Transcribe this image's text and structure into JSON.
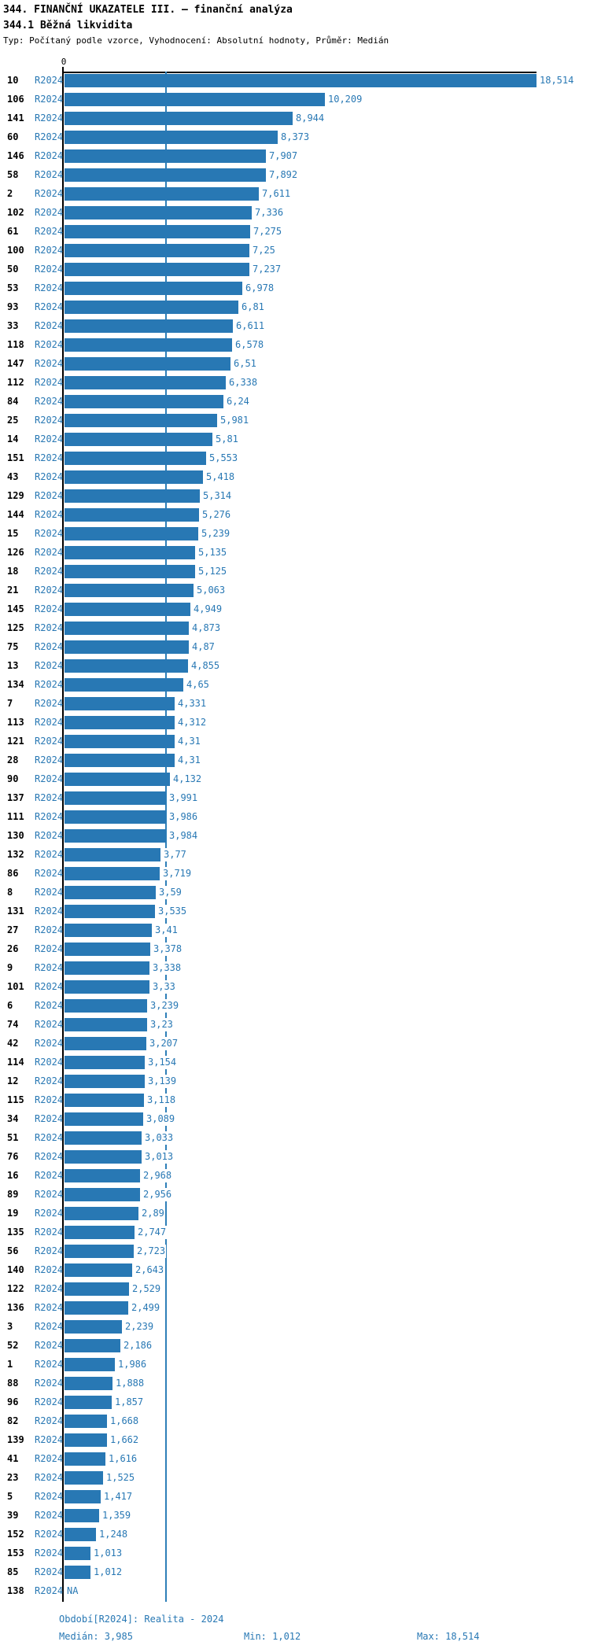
{
  "header": {
    "title": "344. FINANČNÍ UKAZATELE III. – finanční analýza",
    "subtitle": "344.1 Běžná likvidita",
    "meta": "Typ: Počítaný podle vzorce, Vyhodnocení: Absolutní hodnoty, Průměr: Medián"
  },
  "chart_data": {
    "type": "bar",
    "orientation": "horizontal",
    "title": "344.1 Běžná likvidita",
    "value_axis": {
      "origin_label": "0",
      "min": 0,
      "max": 18.514
    },
    "median_value": 3.985,
    "legend": "none",
    "colors": {
      "accent_blue": "#2878b4",
      "median_line": "#2e7fb8",
      "id_text": "#000000"
    },
    "rows": [
      {
        "id": "10",
        "period": "R2024",
        "label": "18,514",
        "value": 18.514
      },
      {
        "id": "106",
        "period": "R2024",
        "label": "10,209",
        "value": 10.209
      },
      {
        "id": "141",
        "period": "R2024",
        "label": "8,944",
        "value": 8.944
      },
      {
        "id": "60",
        "period": "R2024",
        "label": "8,373",
        "value": 8.373
      },
      {
        "id": "146",
        "period": "R2024",
        "label": "7,907",
        "value": 7.907
      },
      {
        "id": "58",
        "period": "R2024",
        "label": "7,892",
        "value": 7.892
      },
      {
        "id": "2",
        "period": "R2024",
        "label": "7,611",
        "value": 7.611
      },
      {
        "id": "102",
        "period": "R2024",
        "label": "7,336",
        "value": 7.336
      },
      {
        "id": "61",
        "period": "R2024",
        "label": "7,275",
        "value": 7.275
      },
      {
        "id": "100",
        "period": "R2024",
        "label": "7,25",
        "value": 7.25
      },
      {
        "id": "50",
        "period": "R2024",
        "label": "7,237",
        "value": 7.237
      },
      {
        "id": "53",
        "period": "R2024",
        "label": "6,978",
        "value": 6.978
      },
      {
        "id": "93",
        "period": "R2024",
        "label": "6,81",
        "value": 6.81
      },
      {
        "id": "33",
        "period": "R2024",
        "label": "6,611",
        "value": 6.611
      },
      {
        "id": "118",
        "period": "R2024",
        "label": "6,578",
        "value": 6.578
      },
      {
        "id": "147",
        "period": "R2024",
        "label": "6,51",
        "value": 6.51
      },
      {
        "id": "112",
        "period": "R2024",
        "label": "6,338",
        "value": 6.338
      },
      {
        "id": "84",
        "period": "R2024",
        "label": "6,24",
        "value": 6.24
      },
      {
        "id": "25",
        "period": "R2024",
        "label": "5,981",
        "value": 5.981
      },
      {
        "id": "14",
        "period": "R2024",
        "label": "5,81",
        "value": 5.81
      },
      {
        "id": "151",
        "period": "R2024",
        "label": "5,553",
        "value": 5.553
      },
      {
        "id": "43",
        "period": "R2024",
        "label": "5,418",
        "value": 5.418
      },
      {
        "id": "129",
        "period": "R2024",
        "label": "5,314",
        "value": 5.314
      },
      {
        "id": "144",
        "period": "R2024",
        "label": "5,276",
        "value": 5.276
      },
      {
        "id": "15",
        "period": "R2024",
        "label": "5,239",
        "value": 5.239
      },
      {
        "id": "126",
        "period": "R2024",
        "label": "5,135",
        "value": 5.135
      },
      {
        "id": "18",
        "period": "R2024",
        "label": "5,125",
        "value": 5.125
      },
      {
        "id": "21",
        "period": "R2024",
        "label": "5,063",
        "value": 5.063
      },
      {
        "id": "145",
        "period": "R2024",
        "label": "4,949",
        "value": 4.949
      },
      {
        "id": "125",
        "period": "R2024",
        "label": "4,873",
        "value": 4.873
      },
      {
        "id": "75",
        "period": "R2024",
        "label": "4,87",
        "value": 4.87
      },
      {
        "id": "13",
        "period": "R2024",
        "label": "4,855",
        "value": 4.855
      },
      {
        "id": "134",
        "period": "R2024",
        "label": "4,65",
        "value": 4.65
      },
      {
        "id": "7",
        "period": "R2024",
        "label": "4,331",
        "value": 4.331
      },
      {
        "id": "113",
        "period": "R2024",
        "label": "4,312",
        "value": 4.312
      },
      {
        "id": "121",
        "period": "R2024",
        "label": "4,31",
        "value": 4.31
      },
      {
        "id": "28",
        "period": "R2024",
        "label": "4,31",
        "value": 4.31
      },
      {
        "id": "90",
        "period": "R2024",
        "label": "4,132",
        "value": 4.132
      },
      {
        "id": "137",
        "period": "R2024",
        "label": "3,991",
        "value": 3.991
      },
      {
        "id": "111",
        "period": "R2024",
        "label": "3,986",
        "value": 3.986
      },
      {
        "id": "130",
        "period": "R2024",
        "label": "3,984",
        "value": 3.984
      },
      {
        "id": "132",
        "period": "R2024",
        "label": "3,77",
        "value": 3.77
      },
      {
        "id": "86",
        "period": "R2024",
        "label": "3,719",
        "value": 3.719
      },
      {
        "id": "8",
        "period": "R2024",
        "label": "3,59",
        "value": 3.59
      },
      {
        "id": "131",
        "period": "R2024",
        "label": "3,535",
        "value": 3.535
      },
      {
        "id": "27",
        "period": "R2024",
        "label": "3,41",
        "value": 3.41
      },
      {
        "id": "26",
        "period": "R2024",
        "label": "3,378",
        "value": 3.378
      },
      {
        "id": "9",
        "period": "R2024",
        "label": "3,338",
        "value": 3.338
      },
      {
        "id": "101",
        "period": "R2024",
        "label": "3,33",
        "value": 3.33
      },
      {
        "id": "6",
        "period": "R2024",
        "label": "3,239",
        "value": 3.239
      },
      {
        "id": "74",
        "period": "R2024",
        "label": "3,23",
        "value": 3.23
      },
      {
        "id": "42",
        "period": "R2024",
        "label": "3,207",
        "value": 3.207
      },
      {
        "id": "114",
        "period": "R2024",
        "label": "3,154",
        "value": 3.154
      },
      {
        "id": "12",
        "period": "R2024",
        "label": "3,139",
        "value": 3.139
      },
      {
        "id": "115",
        "period": "R2024",
        "label": "3,118",
        "value": 3.118
      },
      {
        "id": "34",
        "period": "R2024",
        "label": "3,089",
        "value": 3.089
      },
      {
        "id": "51",
        "period": "R2024",
        "label": "3,033",
        "value": 3.033
      },
      {
        "id": "76",
        "period": "R2024",
        "label": "3,013",
        "value": 3.013
      },
      {
        "id": "16",
        "period": "R2024",
        "label": "2,968",
        "value": 2.968
      },
      {
        "id": "89",
        "period": "R2024",
        "label": "2,956",
        "value": 2.956
      },
      {
        "id": "19",
        "period": "R2024",
        "label": "2,89",
        "value": 2.89
      },
      {
        "id": "135",
        "period": "R2024",
        "label": "2,747",
        "value": 2.747
      },
      {
        "id": "56",
        "period": "R2024",
        "label": "2,723",
        "value": 2.723
      },
      {
        "id": "140",
        "period": "R2024",
        "label": "2,643",
        "value": 2.643
      },
      {
        "id": "122",
        "period": "R2024",
        "label": "2,529",
        "value": 2.529
      },
      {
        "id": "136",
        "period": "R2024",
        "label": "2,499",
        "value": 2.499
      },
      {
        "id": "3",
        "period": "R2024",
        "label": "2,239",
        "value": 2.239
      },
      {
        "id": "52",
        "period": "R2024",
        "label": "2,186",
        "value": 2.186
      },
      {
        "id": "1",
        "period": "R2024",
        "label": "1,986",
        "value": 1.986
      },
      {
        "id": "88",
        "period": "R2024",
        "label": "1,888",
        "value": 1.888
      },
      {
        "id": "96",
        "period": "R2024",
        "label": "1,857",
        "value": 1.857
      },
      {
        "id": "82",
        "period": "R2024",
        "label": "1,668",
        "value": 1.668
      },
      {
        "id": "139",
        "period": "R2024",
        "label": "1,662",
        "value": 1.662
      },
      {
        "id": "41",
        "period": "R2024",
        "label": "1,616",
        "value": 1.616
      },
      {
        "id": "23",
        "period": "R2024",
        "label": "1,525",
        "value": 1.525
      },
      {
        "id": "5",
        "period": "R2024",
        "label": "1,417",
        "value": 1.417
      },
      {
        "id": "39",
        "period": "R2024",
        "label": "1,359",
        "value": 1.359
      },
      {
        "id": "152",
        "period": "R2024",
        "label": "1,248",
        "value": 1.248
      },
      {
        "id": "153",
        "period": "R2024",
        "label": "1,013",
        "value": 1.013
      },
      {
        "id": "85",
        "period": "R2024",
        "label": "1,012",
        "value": 1.012
      },
      {
        "id": "138",
        "period": "R2024",
        "label": "NA",
        "value": null
      }
    ]
  },
  "footer": {
    "period_info": "Období[R2024]: Realita - 2024",
    "median": "Medián: 3,985",
    "min": "Min: 1,012",
    "max": "Max: 18,514"
  }
}
